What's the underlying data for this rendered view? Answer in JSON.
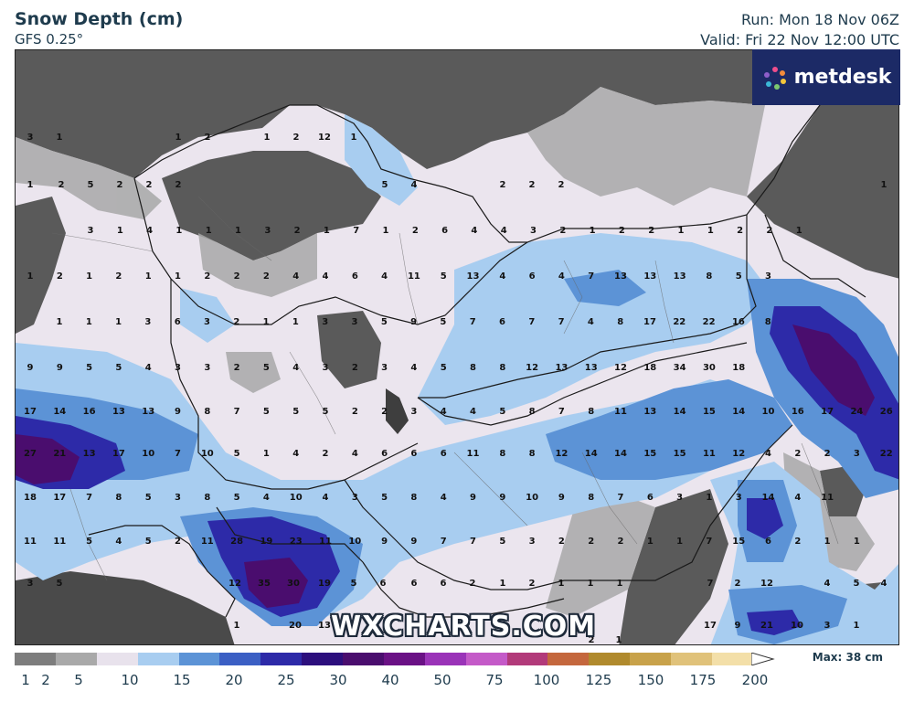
{
  "header": {
    "title": "Snow Depth (cm)",
    "model": "GFS 0.25°",
    "run": "Run: Mon 18 Nov 06Z",
    "valid": "Valid: Fri 22 Nov 12:00 UTC"
  },
  "logo": {
    "text": "metdesk"
  },
  "watermark": "WXCHARTS.COM",
  "legend": {
    "max_label": "Max: 38 cm",
    "colors": [
      "#7d7d7d",
      "#a9a9a9",
      "#e8e2ec",
      "#a8cdf0",
      "#5c93d6",
      "#3b5fc4",
      "#2d2aa8",
      "#2c0f7d",
      "#4a0d6e",
      "#6a1185",
      "#9a33b8",
      "#c45ac8",
      "#b23a7a",
      "#c4673d",
      "#b08a2d",
      "#c8a24a",
      "#e0c27a",
      "#f3dfa8"
    ],
    "ticks": [
      "1",
      "2",
      "5",
      "10",
      "15",
      "20",
      "25",
      "30",
      "40",
      "50",
      "75",
      "100",
      "125",
      "150",
      "175",
      "200"
    ]
  },
  "map_values": [
    [
      "3",
      "1",
      "1",
      "2",
      "1",
      "2",
      "12",
      "1"
    ],
    [
      "1",
      "2",
      "5",
      "2",
      "2",
      "2",
      "5",
      "4",
      "2",
      "2",
      "2",
      "1"
    ],
    [
      "3",
      "1",
      "4",
      "1",
      "1",
      "1",
      "3",
      "2",
      "1",
      "7",
      "1",
      "2",
      "6",
      "4",
      "4",
      "3",
      "2",
      "1",
      "2",
      "2",
      "1",
      "1",
      "2",
      "2",
      "1"
    ],
    [
      "1",
      "2",
      "1",
      "2",
      "1",
      "1",
      "2",
      "2",
      "2",
      "4",
      "4",
      "6",
      "4",
      "11",
      "5",
      "13",
      "4",
      "6",
      "4",
      "7",
      "13",
      "13",
      "13",
      "8",
      "5",
      "3"
    ],
    [
      "1",
      "1",
      "1",
      "3",
      "6",
      "3",
      "2",
      "1",
      "1",
      "3",
      "3",
      "5",
      "9",
      "5",
      "7",
      "6",
      "7",
      "7",
      "4",
      "8",
      "17",
      "22",
      "22",
      "16",
      "8"
    ],
    [
      "9",
      "9",
      "5",
      "5",
      "4",
      "3",
      "3",
      "2",
      "5",
      "4",
      "3",
      "2",
      "3",
      "4",
      "5",
      "8",
      "8",
      "12",
      "13",
      "13",
      "12",
      "18",
      "34",
      "30",
      "18"
    ],
    [
      "17",
      "14",
      "16",
      "13",
      "13",
      "9",
      "8",
      "7",
      "5",
      "5",
      "5",
      "2",
      "2",
      "3",
      "4",
      "4",
      "5",
      "8",
      "7",
      "8",
      "11",
      "13",
      "14",
      "15",
      "14",
      "10",
      "16",
      "17",
      "24",
      "26"
    ],
    [
      "27",
      "21",
      "13",
      "17",
      "10",
      "7",
      "10",
      "5",
      "1",
      "4",
      "2",
      "4",
      "6",
      "6",
      "6",
      "11",
      "8",
      "8",
      "12",
      "14",
      "14",
      "15",
      "15",
      "11",
      "12",
      "4",
      "2",
      "2",
      "3",
      "22"
    ],
    [
      "18",
      "17",
      "7",
      "8",
      "5",
      "3",
      "8",
      "5",
      "4",
      "10",
      "4",
      "3",
      "5",
      "8",
      "4",
      "9",
      "9",
      "10",
      "9",
      "8",
      "7",
      "6",
      "3",
      "1",
      "3",
      "14",
      "4",
      "11"
    ],
    [
      "11",
      "11",
      "5",
      "4",
      "5",
      "2",
      "11",
      "28",
      "19",
      "23",
      "11",
      "10",
      "9",
      "9",
      "7",
      "7",
      "5",
      "3",
      "2",
      "2",
      "2",
      "1",
      "1",
      "7",
      "15",
      "6",
      "2",
      "1",
      "1"
    ],
    [
      "3",
      "5",
      "12",
      "35",
      "30",
      "19",
      "5",
      "6",
      "6",
      "6",
      "2",
      "1",
      "2",
      "1",
      "1",
      "1",
      "7",
      "2",
      "12",
      "4",
      "5",
      "4"
    ],
    [
      "1",
      "20",
      "13",
      "9",
      "17",
      "21",
      "10",
      "3",
      "1"
    ],
    [
      "2",
      "1"
    ]
  ]
}
